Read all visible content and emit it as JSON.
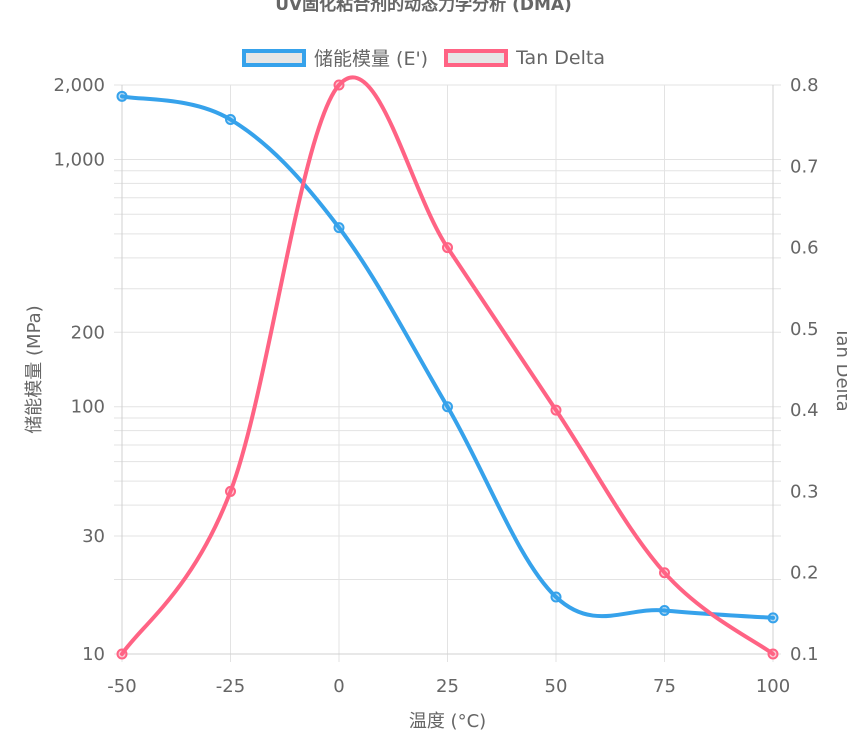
{
  "chart_data": {
    "type": "line",
    "title": "UV固化粘合剂的动态力学分析 (DMA)",
    "xlabel": "温度 (°C)",
    "ylabel_left": "储能模量 (MPa)",
    "ylabel_right": "Tan Delta",
    "x": [
      -50,
      -25,
      0,
      25,
      50,
      75,
      100
    ],
    "x_ticks": [
      "-50",
      "-25",
      "0",
      "25",
      "50",
      "75",
      "100"
    ],
    "y_left_scale": "log",
    "y_left_range": [
      10,
      2000
    ],
    "y_left_ticks": [
      {
        "value": 10,
        "label": "10"
      },
      {
        "value": 30,
        "label": "30"
      },
      {
        "value": 100,
        "label": "100"
      },
      {
        "value": 200,
        "label": "200"
      },
      {
        "value": 1000,
        "label": "1,000"
      },
      {
        "value": 2000,
        "label": "2,000"
      }
    ],
    "y_left_grid": [
      10,
      20,
      30,
      40,
      50,
      60,
      70,
      80,
      90,
      100,
      200,
      300,
      400,
      500,
      600,
      700,
      800,
      900,
      1000,
      2000
    ],
    "y_right_range": [
      0.1,
      0.8
    ],
    "y_right_ticks": [
      "0.1",
      "0.2",
      "0.3",
      "0.4",
      "0.5",
      "0.6",
      "0.7",
      "0.8"
    ],
    "series": [
      {
        "name": "储能模量 (E')",
        "axis": "left",
        "color": "#36a2eb",
        "values": [
          1800,
          1450,
          530,
          100,
          17,
          15,
          14
        ]
      },
      {
        "name": "Tan Delta",
        "axis": "right",
        "color": "#ff6384",
        "values": [
          0.1,
          0.3,
          0.8,
          0.6,
          0.4,
          0.2,
          0.1
        ]
      }
    ],
    "grid": true,
    "legend_position": "top"
  }
}
